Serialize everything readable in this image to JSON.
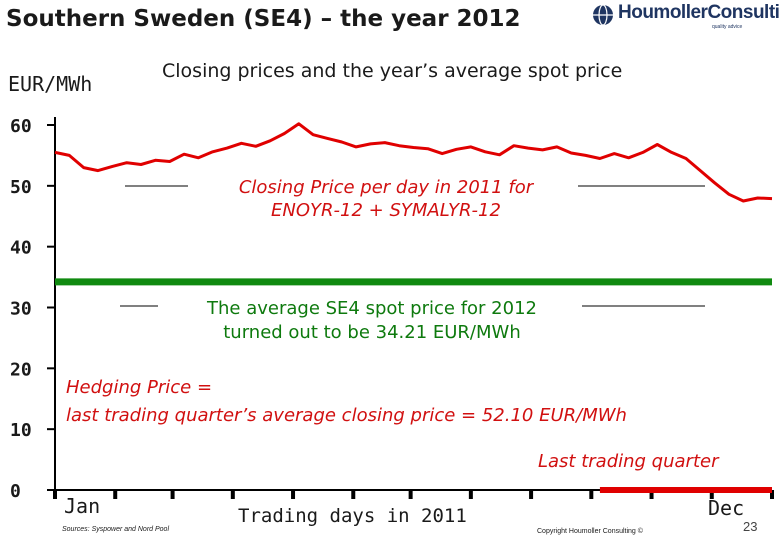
{
  "slide": {
    "title": "Southern Sweden (SE4) – the year 2012",
    "unit": "EUR/MWh",
    "subtitle": "Closing prices and the year’s average spot price",
    "logo_text": "HoumollerConsulting",
    "logo_tagline": "quality advice",
    "source": "Sources: Syspower and Nord Pool",
    "copyright": "Copyright Houmoller Consulting ©",
    "page_number": "23"
  },
  "annotations": {
    "closing_line1": "Closing Price per day in 2011 for",
    "closing_line2": "ENOYR-12 + SYMALYR-12",
    "spot_line1": "The average SE4 spot price for 2012",
    "spot_line2": "turned out to be 34.21 EUR/MWh",
    "hedge_line1": "Hedging Price  =",
    "hedge_line2": "last trading quarter’s average closing price  =  52.10 EUR/MWh",
    "last_quarter": "Last trading quarter"
  },
  "colors": {
    "closing_price": "#e00000",
    "spot_average": "#108a10",
    "last_quarter": "#e00000",
    "axis": "#000000",
    "text_red": "#d11010",
    "text_green": "#0e7a0e",
    "logo": "#1f3561"
  },
  "chart_data": {
    "type": "line",
    "title": "Southern Sweden (SE4) – the year 2012",
    "subtitle": "Closing prices and the year’s average spot price",
    "xlabel": "Trading days in 2011",
    "ylabel": "EUR/MWh",
    "x_first_label": "Jan",
    "x_last_label": "Dec",
    "ylim": [
      0,
      60
    ],
    "yticks": [
      0,
      10,
      20,
      30,
      40,
      50,
      60
    ],
    "x_range": [
      0,
      250
    ],
    "grid": false,
    "series": [
      {
        "name": "Closing Price per day in 2011 for ENOYR-12 + SYMALYR-12",
        "x": [
          0,
          5,
          10,
          15,
          20,
          25,
          30,
          35,
          40,
          45,
          50,
          55,
          60,
          65,
          70,
          75,
          80,
          85,
          90,
          95,
          100,
          105,
          110,
          115,
          120,
          125,
          130,
          135,
          140,
          145,
          150,
          155,
          160,
          165,
          170,
          175,
          180,
          185,
          190,
          195,
          200,
          205,
          210,
          215,
          220,
          225,
          230,
          235,
          240,
          245,
          250
        ],
        "values": [
          55.5,
          55.0,
          53.0,
          52.5,
          53.2,
          53.8,
          53.5,
          54.2,
          54.0,
          55.2,
          54.6,
          55.6,
          56.2,
          57.0,
          56.5,
          57.4,
          58.6,
          60.2,
          58.4,
          57.8,
          57.2,
          56.4,
          56.9,
          57.1,
          56.6,
          56.3,
          56.1,
          55.3,
          56.0,
          56.4,
          55.6,
          55.1,
          56.6,
          56.2,
          55.9,
          56.4,
          55.4,
          55.0,
          54.5,
          55.3,
          54.6,
          55.5,
          56.8,
          55.5,
          54.5,
          52.5,
          50.5,
          48.6,
          47.5,
          48.0,
          47.9
        ]
      },
      {
        "name": "Average SE4 spot price 2012",
        "x": [
          0,
          250
        ],
        "values": [
          34.21,
          34.21
        ]
      },
      {
        "name": "Last trading quarter",
        "x": [
          190,
          250
        ],
        "values": [
          0,
          0
        ]
      }
    ],
    "x_ticks": [
      0,
      21,
      41,
      62,
      83,
      104,
      124,
      145,
      166,
      187,
      208,
      229,
      250
    ]
  }
}
